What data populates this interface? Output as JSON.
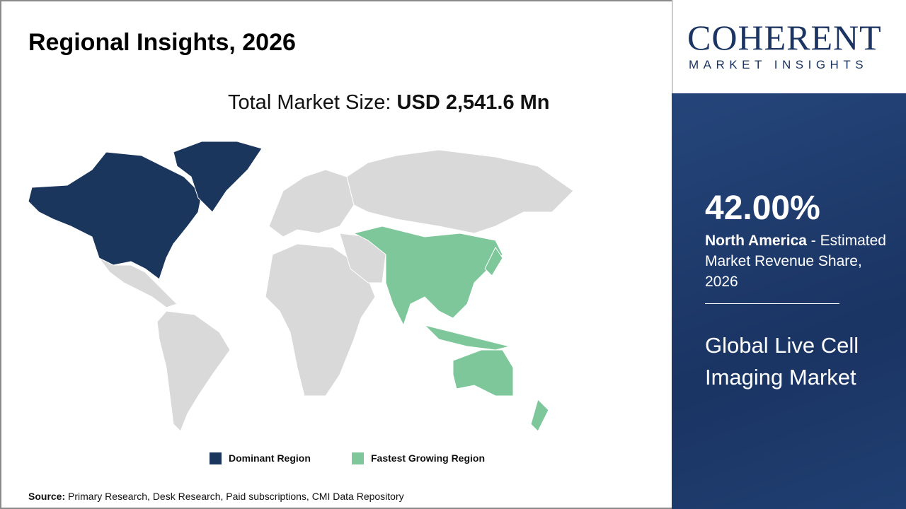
{
  "header": {
    "title": "Regional Insights, 2026"
  },
  "market_size": {
    "label": "Total Market Size: ",
    "value": "USD 2,541.6 Mn"
  },
  "legend": [
    {
      "label": "Dominant Region",
      "color": "#1b365d"
    },
    {
      "label": "Fastest Growing Region",
      "color": "#7dc79a"
    }
  ],
  "map": {
    "dominant_region": "North America",
    "fastest_growing_region": "Asia Pacific",
    "other_color": "#d9d9d9"
  },
  "source": {
    "label": "Source:",
    "text": " Primary Research, Desk Research, Paid subscriptions, CMI Data Repository"
  },
  "logo": {
    "line1": "COHERENT",
    "line2": "MARKET INSIGHTS"
  },
  "panel": {
    "share": "42.00%",
    "region": "North America",
    "desc": " - Estimated Market Revenue Share, 2026",
    "market_name": "Global Live Cell Imaging Market"
  }
}
